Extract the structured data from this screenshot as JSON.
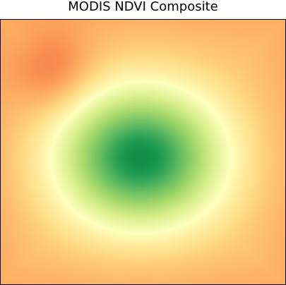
{
  "chart_data": {
    "type": "heatmap",
    "title": "MODIS NDVI Composite",
    "xlabel": "",
    "ylabel": "",
    "colormap": "RdYlGn",
    "value_range": [
      -0.2,
      0.9
    ],
    "grid": false,
    "colorbar": false,
    "background_value": 0.18,
    "features": [
      {
        "description": "vegetated patch, high NDVI",
        "center": [
          0.49,
          0.52
        ],
        "spread": [
          0.2,
          0.18
        ],
        "peak_value": 0.82
      },
      {
        "description": "sparse / dry patch, low NDVI",
        "center": [
          0.19,
          0.2
        ],
        "spread": [
          0.1,
          0.11
        ],
        "peak_value": 0.05
      }
    ]
  }
}
